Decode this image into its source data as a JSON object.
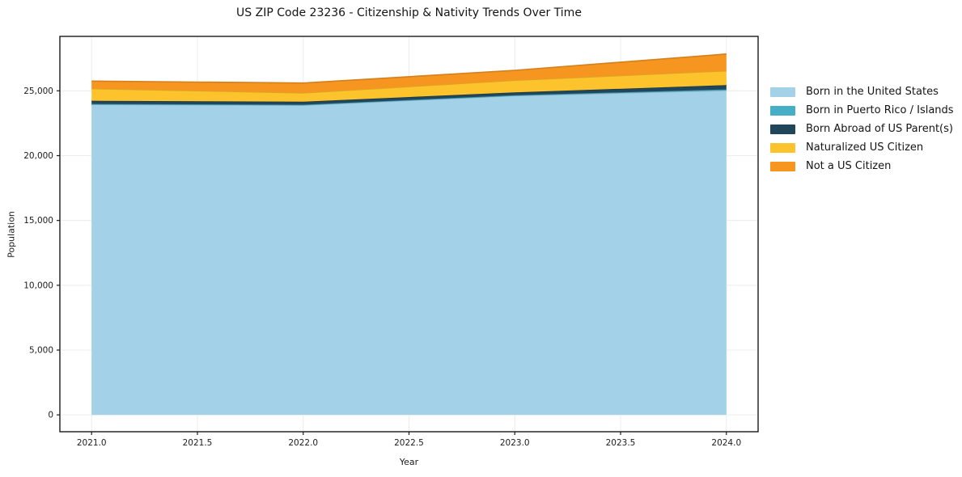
{
  "page": {
    "title": "US ZIP Code 23236 - Citizenship & Nativity Trends Over Time"
  },
  "chart_data": {
    "type": "area",
    "stacked": true,
    "title": "US ZIP Code 23236 - Citizenship & Nativity Trends Over Time",
    "xlabel": "Year",
    "ylabel": "Population",
    "x": [
      2021,
      2022,
      2023,
      2024
    ],
    "xlim": [
      2020.85,
      2024.15
    ],
    "ylim": [
      -1300,
      29200
    ],
    "x_ticks": [
      2021.0,
      2021.5,
      2022.0,
      2022.5,
      2023.0,
      2023.5,
      2024.0
    ],
    "x_tick_labels": [
      "2021.0",
      "2021.5",
      "2022.0",
      "2022.5",
      "2023.0",
      "2023.5",
      "2024.0"
    ],
    "y_ticks": [
      0,
      5000,
      10000,
      15000,
      20000,
      25000
    ],
    "y_tick_labels": [
      "0",
      "5,000",
      "10,000",
      "15,000",
      "20,000",
      "25,000"
    ],
    "grid": true,
    "legend_position": "right",
    "series": [
      {
        "name": "Born in the United States",
        "color": "#A2D1E8",
        "values": [
          23950,
          23890,
          24630,
          25030
        ]
      },
      {
        "name": "Born in Puerto Rico / Islands",
        "color": "#46AEC7",
        "values": [
          40,
          40,
          30,
          80
        ]
      },
      {
        "name": "Born Abroad of US Parent(s)",
        "color": "#21455A",
        "values": [
          240,
          230,
          220,
          330
        ]
      },
      {
        "name": "Naturalized US Citizen",
        "color": "#FCC32C",
        "values": [
          940,
          680,
          930,
          1100
        ]
      },
      {
        "name": "Not a US Citizen",
        "color": "#F6951F",
        "values": [
          580,
          760,
          770,
          1300
        ]
      }
    ],
    "colors": {
      "grid": "#ececec",
      "spine": "#1a1a1a",
      "background": "#ffffff"
    }
  }
}
